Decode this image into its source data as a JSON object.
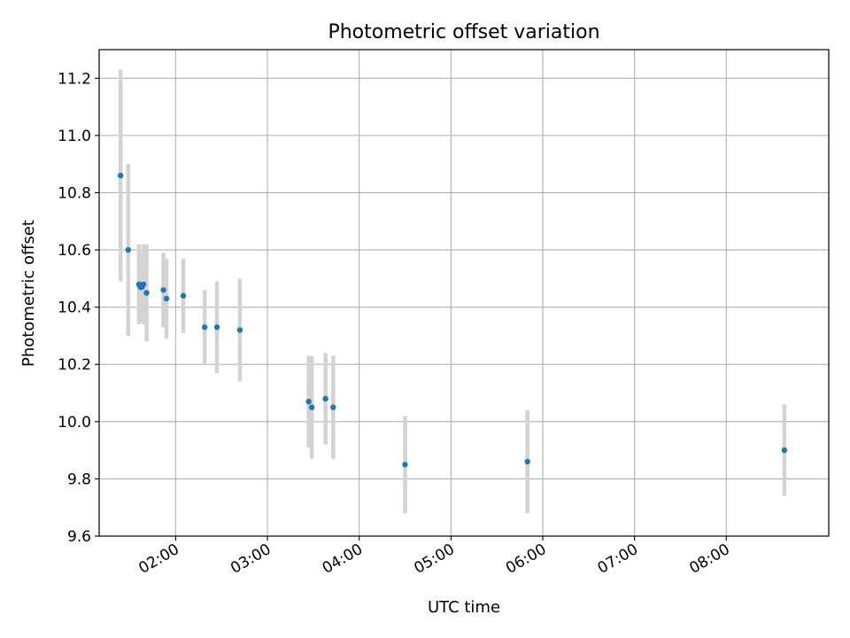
{
  "chart_data": {
    "type": "scatter",
    "title": "Photometric offset variation",
    "xlabel": "UTC time",
    "ylabel": "Photometric offset",
    "xlim": [
      "01:10",
      "09:07"
    ],
    "ylim": [
      9.6,
      11.3
    ],
    "x_ticks": [
      "02:00",
      "03:00",
      "04:00",
      "05:00",
      "06:00",
      "07:00",
      "08:00"
    ],
    "y_ticks": [
      "9.6",
      "9.8",
      "10.0",
      "10.2",
      "10.4",
      "10.6",
      "10.8",
      "11.0",
      "11.2"
    ],
    "grid": true,
    "marker_color": "#1f77b4",
    "errorbar_color": "#d3d3d3",
    "series": [
      {
        "points": [
          {
            "x": "01:24",
            "y": 10.86,
            "err": 0.37
          },
          {
            "x": "01:29",
            "y": 10.6,
            "err": 0.3
          },
          {
            "x": "01:36",
            "y": 10.48,
            "err": 0.14
          },
          {
            "x": "01:37",
            "y": 10.47,
            "err": 0.12
          },
          {
            "x": "01:38",
            "y": 10.47,
            "err": 0.12
          },
          {
            "x": "01:39",
            "y": 10.48,
            "err": 0.14
          },
          {
            "x": "01:41",
            "y": 10.45,
            "err": 0.17
          },
          {
            "x": "01:52",
            "y": 10.46,
            "err": 0.13
          },
          {
            "x": "01:54",
            "y": 10.43,
            "err": 0.14
          },
          {
            "x": "02:05",
            "y": 10.44,
            "err": 0.13
          },
          {
            "x": "02:19",
            "y": 10.33,
            "err": 0.13
          },
          {
            "x": "02:27",
            "y": 10.33,
            "err": 0.16
          },
          {
            "x": "02:42",
            "y": 10.32,
            "err": 0.18
          },
          {
            "x": "03:27",
            "y": 10.07,
            "err": 0.16
          },
          {
            "x": "03:29",
            "y": 10.05,
            "err": 0.18
          },
          {
            "x": "03:38",
            "y": 10.08,
            "err": 0.16
          },
          {
            "x": "03:43",
            "y": 10.05,
            "err": 0.18
          },
          {
            "x": "04:30",
            "y": 9.85,
            "err": 0.17
          },
          {
            "x": "05:50",
            "y": 9.86,
            "err": 0.18
          },
          {
            "x": "08:38",
            "y": 9.9,
            "err": 0.16
          }
        ]
      }
    ]
  }
}
